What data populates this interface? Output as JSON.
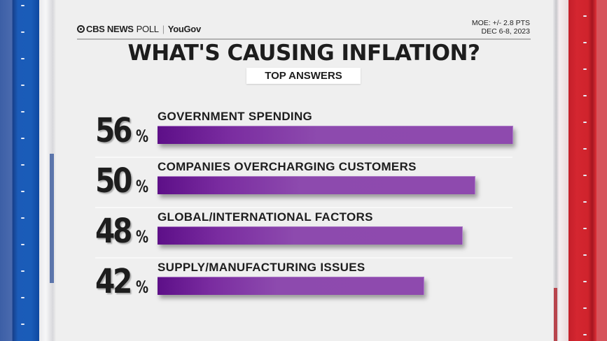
{
  "header": {
    "brand_cbs": "CBS NEWS",
    "brand_poll": "POLL",
    "brand_separator": "|",
    "brand_partner": "YouGov",
    "moe": "MOE: +/- 2.8 PTS",
    "dates": "DEC 6-8, 2023"
  },
  "title": "WHAT'S CAUSING INFLATION?",
  "subtitle": "TOP ANSWERS",
  "colors": {
    "bar_start": "#5d0f88",
    "bar_end": "#8e4aae",
    "left_frame": "#1a5cb8",
    "right_frame": "#d42630",
    "text": "#1d1d1d"
  },
  "rows": [
    {
      "value": "56",
      "pct": "%",
      "label": "GOVERNMENT SPENDING"
    },
    {
      "value": "50",
      "pct": "%",
      "label": "COMPANIES OVERCHARGING CUSTOMERS"
    },
    {
      "value": "48",
      "pct": "%",
      "label": "GLOBAL/INTERNATIONAL FACTORS"
    },
    {
      "value": "42",
      "pct": "%",
      "label": "SUPPLY/MANUFACTURING ISSUES"
    }
  ],
  "chart_data": {
    "type": "bar",
    "orientation": "horizontal",
    "title": "WHAT'S CAUSING INFLATION?",
    "subtitle": "TOP ANSWERS",
    "categories": [
      "GOVERNMENT SPENDING",
      "COMPANIES OVERCHARGING CUSTOMERS",
      "GLOBAL/INTERNATIONAL FACTORS",
      "SUPPLY/MANUFACTURING ISSUES"
    ],
    "values": [
      56,
      50,
      48,
      42
    ],
    "unit": "%",
    "xlabel": "",
    "ylabel": "",
    "grid": false,
    "legend": "none",
    "source": "CBS NEWS POLL | YouGov",
    "annotations": [
      "MOE: +/- 2.8 PTS",
      "DEC 6-8, 2023"
    ]
  }
}
